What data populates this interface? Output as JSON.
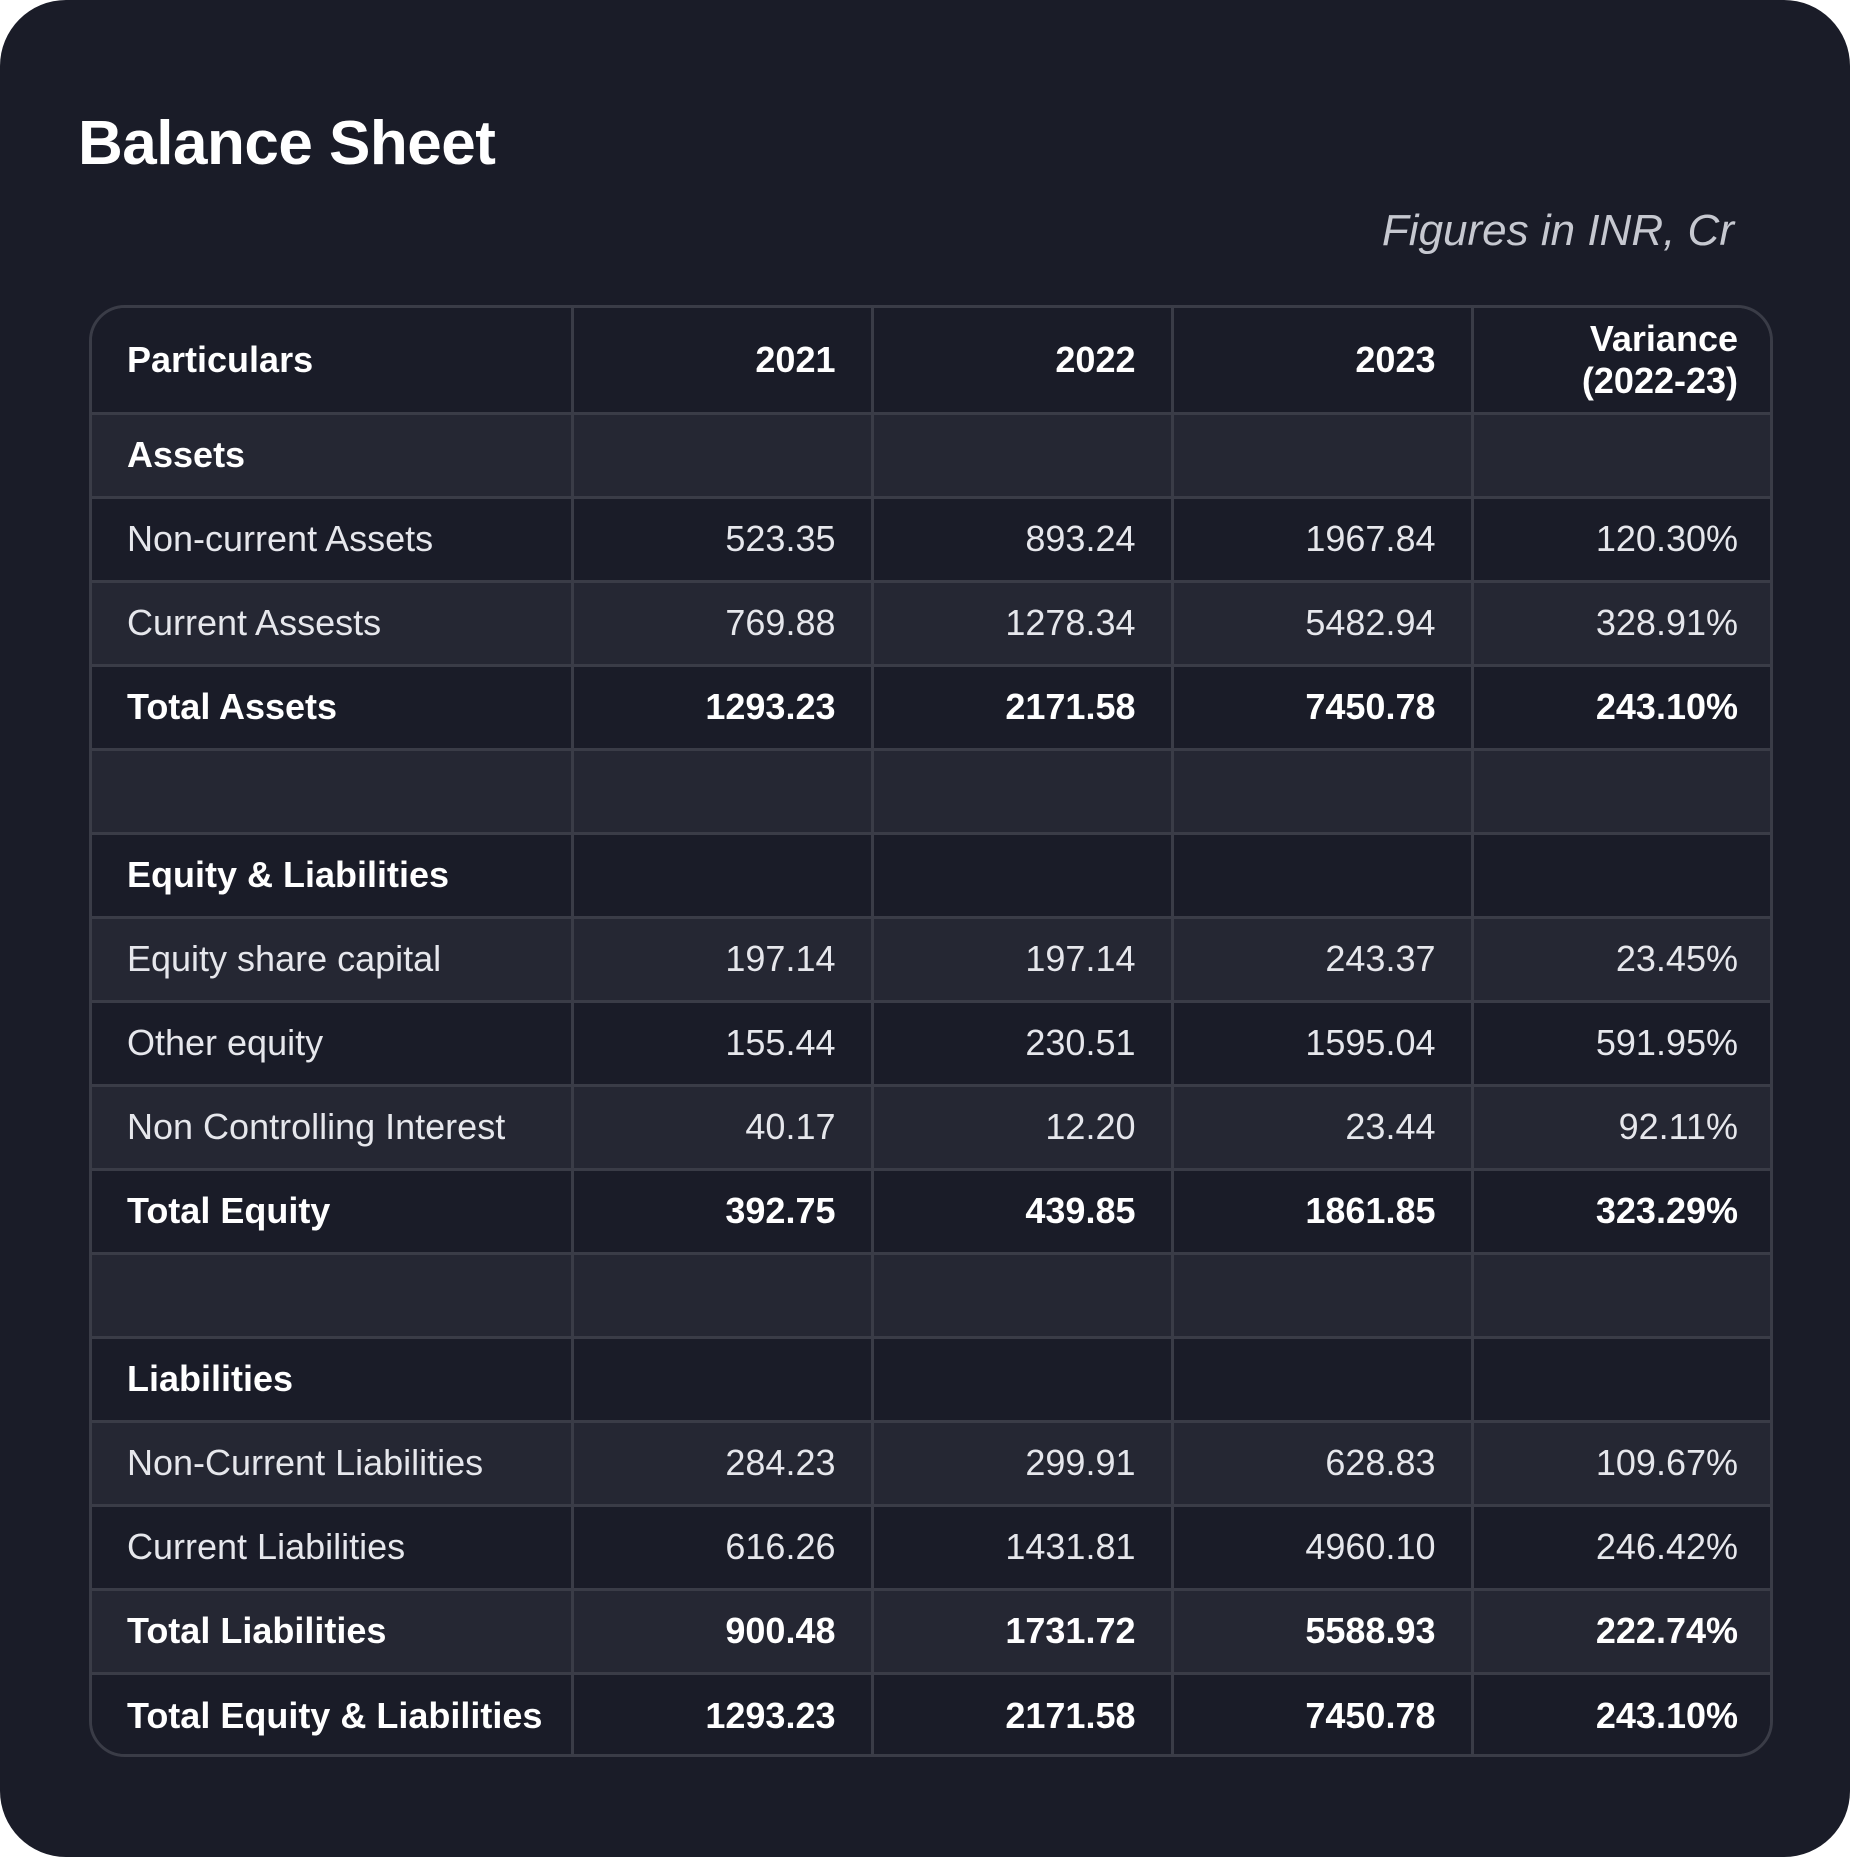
{
  "card": {
    "title": "Balance Sheet",
    "subtitle": "Figures in INR, Cr"
  },
  "table": {
    "headers": [
      "Particulars",
      "2021",
      "2022",
      "2023",
      "Variance\n(2022-23)"
    ],
    "rows": [
      {
        "label": "Assets",
        "values": [
          "",
          "",
          "",
          ""
        ],
        "kind": "section"
      },
      {
        "label": "Non-current Assets",
        "values": [
          "523.35",
          "893.24",
          "1967.84",
          "120.30%"
        ],
        "kind": "normal"
      },
      {
        "label": "Current Assests",
        "values": [
          "769.88",
          "1278.34",
          "5482.94",
          "328.91%"
        ],
        "kind": "normal"
      },
      {
        "label": "Total Assets",
        "values": [
          "1293.23",
          "2171.58",
          "7450.78",
          "243.10%"
        ],
        "kind": "total"
      },
      {
        "label": "",
        "values": [
          "",
          "",
          "",
          ""
        ],
        "kind": "blank"
      },
      {
        "label": "Equity & Liabilities",
        "values": [
          "",
          "",
          "",
          ""
        ],
        "kind": "section"
      },
      {
        "label": "Equity share capital",
        "values": [
          "197.14",
          "197.14",
          "243.37",
          "23.45%"
        ],
        "kind": "normal"
      },
      {
        "label": "Other equity",
        "values": [
          "155.44",
          "230.51",
          "1595.04",
          "591.95%"
        ],
        "kind": "normal"
      },
      {
        "label": "Non Controlling Interest",
        "values": [
          "40.17",
          "12.20",
          "23.44",
          "92.11%"
        ],
        "kind": "normal"
      },
      {
        "label": "Total Equity",
        "values": [
          "392.75",
          "439.85",
          "1861.85",
          "323.29%"
        ],
        "kind": "total"
      },
      {
        "label": "",
        "values": [
          "",
          "",
          "",
          ""
        ],
        "kind": "blank"
      },
      {
        "label": "Liabilities",
        "values": [
          "",
          "",
          "",
          ""
        ],
        "kind": "section"
      },
      {
        "label": "Non-Current Liabilities",
        "values": [
          "284.23",
          "299.91",
          "628.83",
          "109.67%"
        ],
        "kind": "normal"
      },
      {
        "label": "Current Liabilities",
        "values": [
          "616.26",
          "1431.81",
          "4960.10",
          "246.42%"
        ],
        "kind": "normal"
      },
      {
        "label": "Total Liabilities",
        "values": [
          "900.48",
          "1731.72",
          "5588.93",
          "222.74%"
        ],
        "kind": "total"
      },
      {
        "label": "Total Equity & Liabilities",
        "values": [
          "1293.23",
          "2171.58",
          "7450.78",
          "243.10%"
        ],
        "kind": "total"
      }
    ]
  },
  "colors": {
    "background": "#1a1c28",
    "row_alt": "#252733",
    "border": "#3a3c47",
    "text": "#e6e7ec",
    "subtitle": "#c6c8d0"
  }
}
